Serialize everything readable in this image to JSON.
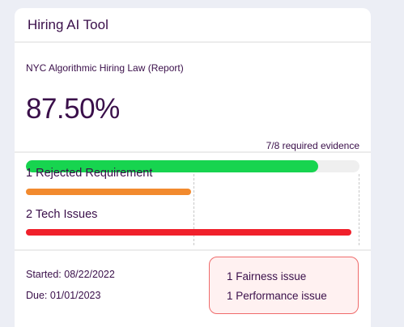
{
  "card": {
    "title": "Hiring AI Tool"
  },
  "report": {
    "name": "NYC Algorithmic Hiring Law (Report)",
    "score": "87.50%",
    "score_fraction": 0.875,
    "evidence": "7/8 required evidence",
    "progress_color": "#17d44f"
  },
  "issues": {
    "rejected_label": "1 Rejected Requirement",
    "rejected_fraction": 0.5,
    "rejected_color": "#f28a2e",
    "tech_label": "2 Tech Issues",
    "tech_fraction": 1.0,
    "tech_color": "#f0202b"
  },
  "dates": {
    "started": "Started: 08/22/2022",
    "due": "Due: 01/01/2023"
  },
  "tooltip": {
    "items": [
      "1 Fairness issue",
      "1 Performance issue"
    ],
    "border_color": "#ef6b6b"
  }
}
